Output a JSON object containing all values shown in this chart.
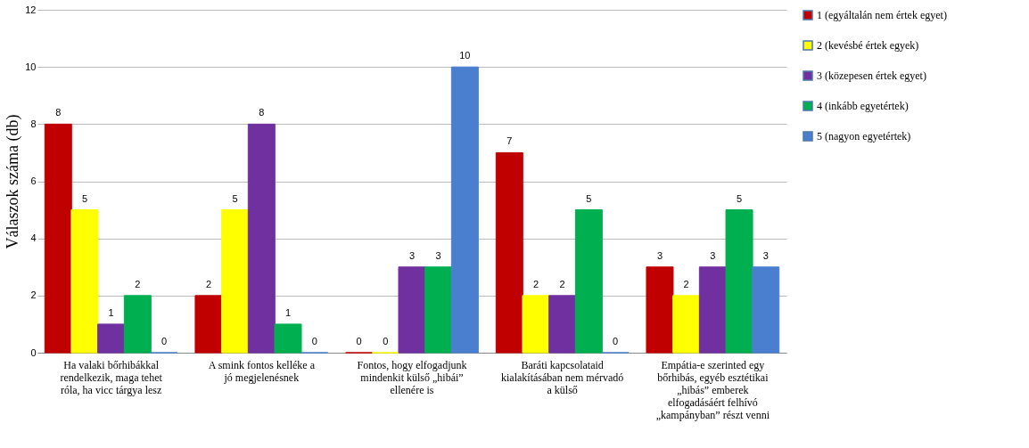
{
  "chart_data": {
    "type": "bar",
    "ylabel": "Válaszok száma (db)",
    "categories": [
      "Ha valaki bőrhibákkal rendelkezik, maga tehet róla, ha vicc tárgya lesz",
      "A smink fontos kelléke a jó megjelenésnek",
      "Fontos, hogy elfogadjunk mindenkit külső „hibái” ellenére is",
      "Baráti kapcsolataid kialakításában nem mérvadó a külső",
      "Empátia-e szerinted egy bőrhibás, egyéb esztétikai „hibás” emberek elfogadásáért felhívó „kampányban” részt venni"
    ],
    "series": [
      {
        "name": "1 (egyáltalán nem értek egyet)",
        "color": "#c00000",
        "values": [
          8,
          2,
          0,
          7,
          3
        ]
      },
      {
        "name": "2 (kevésbé értek egyek)",
        "color": "#ffff00",
        "values": [
          5,
          5,
          0,
          2,
          2
        ]
      },
      {
        "name": "3 (közepesen értek egyet)",
        "color": "#7030a0",
        "values": [
          1,
          8,
          3,
          2,
          3
        ]
      },
      {
        "name": "4 (inkább egyetértek)",
        "color": "#00b050",
        "values": [
          2,
          1,
          3,
          5,
          5
        ]
      },
      {
        "name": "5 (nagyon egyetértek)",
        "color": "#4a7fd0",
        "values": [
          0,
          0,
          10,
          0,
          3
        ]
      }
    ],
    "ylim": [
      0,
      12
    ],
    "yticks": [
      0,
      2,
      4,
      6,
      8,
      10,
      12
    ],
    "grid": "y",
    "legend": "right",
    "data_labels": true
  }
}
